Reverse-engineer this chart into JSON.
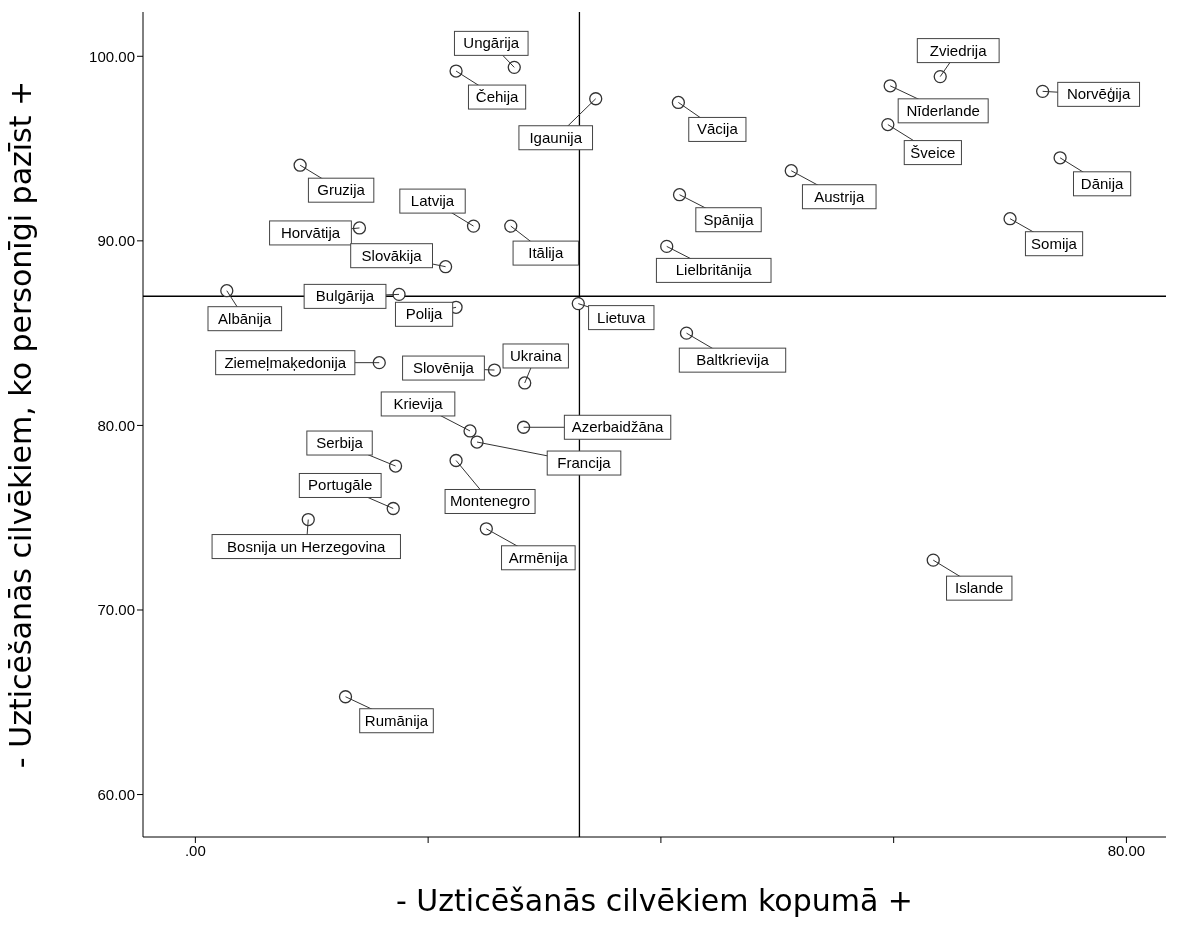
{
  "chart_data": {
    "type": "scatter",
    "xlabel": "- Uzticēšanās cilvēkiem kopumā +",
    "ylabel": "- Uzticēšanās cilvēkiem, ko personīgi pazīst +",
    "xlim": [
      -4.5,
      83.4
    ],
    "ylim": [
      57.7,
      102.4
    ],
    "xticks": [
      {
        "value": 0,
        "label": ".00"
      },
      {
        "value": 20,
        "label": null
      },
      {
        "value": 40,
        "label": null
      },
      {
        "value": 60,
        "label": null
      },
      {
        "value": 80,
        "label": "80.00"
      }
    ],
    "yticks": [
      {
        "value": 60,
        "label": "60.00"
      },
      {
        "value": 70,
        "label": "70.00"
      },
      {
        "value": 80,
        "label": "80.00"
      },
      {
        "value": 90,
        "label": "90.00"
      },
      {
        "value": 100,
        "label": "100.00"
      }
    ],
    "grid": false,
    "marker": "circle",
    "x": [
      27.4,
      22.4,
      34.4,
      41.5,
      64.0,
      59.7,
      72.8,
      59.5,
      74.3,
      51.2,
      41.6,
      70.0,
      40.5,
      9.0,
      23.9,
      14.1,
      27.1,
      21.5,
      2.7,
      17.5,
      22.4,
      32.9,
      42.2,
      15.8,
      25.7,
      28.3,
      23.6,
      28.2,
      24.2,
      17.2,
      22.4,
      17.0,
      9.7,
      25.0,
      63.4,
      12.9
    ],
    "series": [
      {
        "color": "#333333",
        "values": [
          99.4,
          99.2,
          97.7,
          97.5,
          98.9,
          98.4,
          98.1,
          96.3,
          94.5,
          93.8,
          92.5,
          91.2,
          89.7,
          94.1,
          90.8,
          90.7,
          90.8,
          88.6,
          87.3,
          87.1,
          86.4,
          86.6,
          85.0,
          83.4,
          83.0,
          82.3,
          79.7,
          79.9,
          79.1,
          77.8,
          78.1,
          75.5,
          74.9,
          74.4,
          72.7,
          65.3
        ]
      }
    ],
    "ref_lines": [
      {
        "axis": "x",
        "value": 33,
        "color": "#000000"
      },
      {
        "axis": "y",
        "value": 87,
        "color": "#000000"
      }
    ],
    "annotations": [
      {
        "text": "Ungārija",
        "x": 27.4,
        "y": 99.4
      },
      {
        "text": "Čehija",
        "x": 22.4,
        "y": 99.2
      },
      {
        "text": "Igaunija",
        "x": 34.4,
        "y": 97.7
      },
      {
        "text": "Vācija",
        "x": 41.5,
        "y": 97.5
      },
      {
        "text": "Zviedrija",
        "x": 64.0,
        "y": 98.9
      },
      {
        "text": "Nīderlande",
        "x": 59.7,
        "y": 98.4
      },
      {
        "text": "Norvēģija",
        "x": 72.8,
        "y": 98.1
      },
      {
        "text": "Šveice",
        "x": 59.5,
        "y": 96.3
      },
      {
        "text": "Dānija",
        "x": 74.3,
        "y": 94.5
      },
      {
        "text": "Austrija",
        "x": 51.2,
        "y": 93.8
      },
      {
        "text": "Spānija",
        "x": 41.6,
        "y": 92.5
      },
      {
        "text": "Somija",
        "x": 70.0,
        "y": 91.2
      },
      {
        "text": "Lielbritānija",
        "x": 40.5,
        "y": 89.7
      },
      {
        "text": "Gruzija",
        "x": 9.0,
        "y": 94.1
      },
      {
        "text": "Latvija",
        "x": 23.9,
        "y": 90.8
      },
      {
        "text": "Horvātija",
        "x": 14.1,
        "y": 90.7
      },
      {
        "text": "Itālija",
        "x": 27.1,
        "y": 90.8
      },
      {
        "text": "Slovākija",
        "x": 21.5,
        "y": 88.6
      },
      {
        "text": "Albānija",
        "x": 2.7,
        "y": 87.3
      },
      {
        "text": "Bulgārija",
        "x": 17.5,
        "y": 87.1
      },
      {
        "text": "Polija",
        "x": 22.4,
        "y": 86.4
      },
      {
        "text": "Lietuva",
        "x": 32.9,
        "y": 86.6
      },
      {
        "text": "Baltkrievija",
        "x": 42.2,
        "y": 85.0
      },
      {
        "text": "Ziemeļmaķedonija",
        "x": 15.8,
        "y": 83.4
      },
      {
        "text": "Slovēnija",
        "x": 25.7,
        "y": 83.0
      },
      {
        "text": "Ukraina",
        "x": 28.3,
        "y": 82.3
      },
      {
        "text": "Krievija",
        "x": 23.6,
        "y": 79.7
      },
      {
        "text": "Azerbaidžāna",
        "x": 28.2,
        "y": 79.9
      },
      {
        "text": "Francija",
        "x": 24.2,
        "y": 79.1
      },
      {
        "text": "Serbija",
        "x": 17.2,
        "y": 77.8
      },
      {
        "text": "Montenegro",
        "x": 22.4,
        "y": 78.1
      },
      {
        "text": "Portugāle",
        "x": 17.0,
        "y": 75.5
      },
      {
        "text": "Bosnija un Herzegovina",
        "x": 9.7,
        "y": 74.9
      },
      {
        "text": "Armēnija",
        "x": 25.0,
        "y": 74.4
      },
      {
        "text": "Islande",
        "x": 63.4,
        "y": 72.7
      },
      {
        "text": "Rumānija",
        "x": 12.9,
        "y": 65.3
      }
    ]
  }
}
